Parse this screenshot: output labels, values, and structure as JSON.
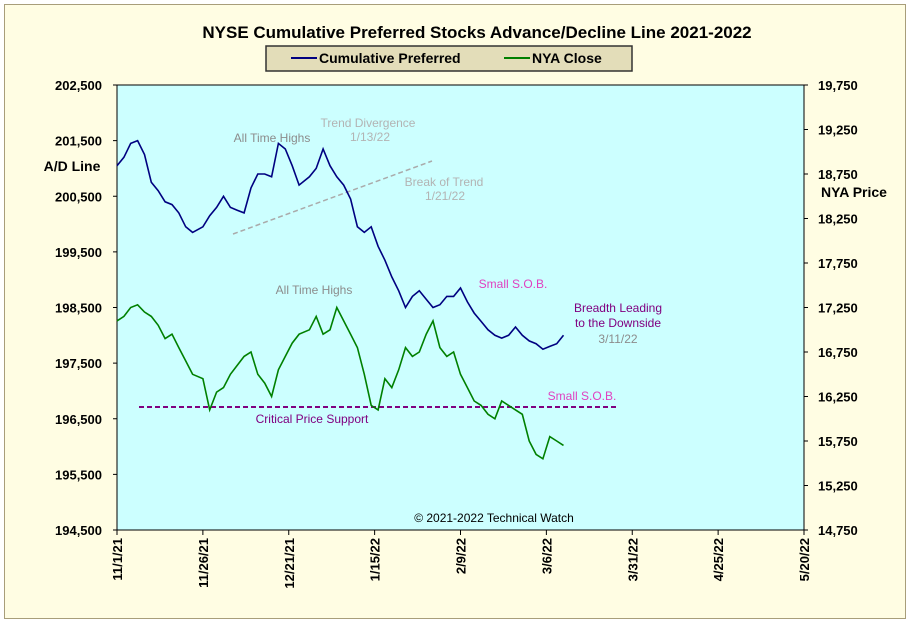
{
  "colors": {
    "background": "#fffde3",
    "plot_area": "#ccffff",
    "preferred": "#000080",
    "nya": "#008000",
    "support_line": "#800080",
    "legend_bg": "#e3ddb9",
    "gray_annotation": "#8c8c8c",
    "light_annotation": "#b3b3b3",
    "magenta_annotation": "#e040c0",
    "purple_annotation": "#800080"
  },
  "chart_data": {
    "type": "line",
    "title": "NYSE Cumulative  Preferred Stocks Advance/Decline  Line 2021-2022",
    "left_axis_label": "A/D Line",
    "right_axis_label": "NYA Price",
    "x_ticks": [
      "11/1/21",
      "11/26/21",
      "12/21/21",
      "1/15/22",
      "2/9/22",
      "3/6/22",
      "3/31/22",
      "4/25/22",
      "5/20/22"
    ],
    "left_ylim": [
      194500,
      202500
    ],
    "left_ticks": [
      "194,500",
      "195,500",
      "196,500",
      "197,500",
      "198,500",
      "199,500",
      "200,500",
      "201,500",
      "202,500"
    ],
    "right_ylim": [
      14750,
      19750
    ],
    "right_ticks": [
      "14,750",
      "15,250",
      "15,750",
      "16,250",
      "16,750",
      "17,250",
      "17,750",
      "18,250",
      "18,750",
      "19,250",
      "19,750"
    ],
    "legend": {
      "position": "top-center",
      "entries": [
        "Cumulative Preferred",
        "NYA Close"
      ]
    },
    "series": [
      {
        "name": "Cumulative Preferred",
        "axis": "left",
        "x": [
          "2021-11-01",
          "2021-11-03",
          "2021-11-05",
          "2021-11-07",
          "2021-11-09",
          "2021-11-11",
          "2021-11-13",
          "2021-11-15",
          "2021-11-17",
          "2021-11-19",
          "2021-11-21",
          "2021-11-23",
          "2021-11-26",
          "2021-11-28",
          "2021-11-30",
          "2021-12-02",
          "2021-12-04",
          "2021-12-06",
          "2021-12-08",
          "2021-12-10",
          "2021-12-12",
          "2021-12-14",
          "2021-12-16",
          "2021-12-18",
          "2021-12-20",
          "2021-12-22",
          "2021-12-24",
          "2021-12-27",
          "2021-12-29",
          "2021-12-31",
          "2022-01-02",
          "2022-01-04",
          "2022-01-06",
          "2022-01-08",
          "2022-01-10",
          "2022-01-12",
          "2022-01-14",
          "2022-01-16",
          "2022-01-18",
          "2022-01-20",
          "2022-01-22",
          "2022-01-24",
          "2022-01-26",
          "2022-01-28",
          "2022-01-30",
          "2022-02-01",
          "2022-02-03",
          "2022-02-05",
          "2022-02-07",
          "2022-02-09",
          "2022-02-11",
          "2022-02-13",
          "2022-02-15",
          "2022-02-17",
          "2022-02-19",
          "2022-02-21",
          "2022-02-23",
          "2022-02-25",
          "2022-02-27",
          "2022-03-01",
          "2022-03-03",
          "2022-03-05",
          "2022-03-07",
          "2022-03-09",
          "2022-03-11"
        ],
        "values": [
          201050,
          201200,
          201450,
          201500,
          201250,
          200750,
          200600,
          200400,
          200350,
          200200,
          199950,
          199850,
          199950,
          200150,
          200300,
          200500,
          200300,
          200250,
          200200,
          200650,
          200900,
          200900,
          200850,
          201450,
          201350,
          201050,
          200700,
          200850,
          201000,
          201350,
          201050,
          200850,
          200700,
          200450,
          199950,
          199850,
          199950,
          199600,
          199350,
          199050,
          198800,
          198500,
          198700,
          198800,
          198650,
          198500,
          198550,
          198700,
          198700,
          198850,
          198600,
          198400,
          198250,
          198100,
          198000,
          197950,
          198000,
          198150,
          198000,
          197900,
          197850,
          197750,
          197800,
          197850,
          198000
        ]
      },
      {
        "name": "NYA Close",
        "axis": "right",
        "x": [
          "2021-11-01",
          "2021-11-03",
          "2021-11-05",
          "2021-11-07",
          "2021-11-09",
          "2021-11-11",
          "2021-11-13",
          "2021-11-15",
          "2021-11-17",
          "2021-11-19",
          "2021-11-21",
          "2021-11-23",
          "2021-11-26",
          "2021-11-28",
          "2021-11-30",
          "2021-12-02",
          "2021-12-04",
          "2021-12-06",
          "2021-12-08",
          "2021-12-10",
          "2021-12-12",
          "2021-12-14",
          "2021-12-16",
          "2021-12-18",
          "2021-12-20",
          "2021-12-22",
          "2021-12-24",
          "2021-12-27",
          "2021-12-29",
          "2021-12-31",
          "2022-01-02",
          "2022-01-04",
          "2022-01-06",
          "2022-01-08",
          "2022-01-10",
          "2022-01-12",
          "2022-01-14",
          "2022-01-16",
          "2022-01-18",
          "2022-01-20",
          "2022-01-22",
          "2022-01-24",
          "2022-01-26",
          "2022-01-28",
          "2022-01-30",
          "2022-02-01",
          "2022-02-03",
          "2022-02-05",
          "2022-02-07",
          "2022-02-09",
          "2022-02-11",
          "2022-02-13",
          "2022-02-15",
          "2022-02-17",
          "2022-02-19",
          "2022-02-21",
          "2022-02-23",
          "2022-02-25",
          "2022-02-27",
          "2022-03-01",
          "2022-03-03",
          "2022-03-05",
          "2022-03-07",
          "2022-03-09",
          "2022-03-11"
        ],
        "values": [
          17100,
          17150,
          17250,
          17280,
          17200,
          17150,
          17050,
          16900,
          16950,
          16800,
          16650,
          16500,
          16450,
          16100,
          16300,
          16350,
          16500,
          16600,
          16700,
          16750,
          16500,
          16400,
          16250,
          16550,
          16700,
          16850,
          16950,
          17000,
          17150,
          16950,
          17000,
          17250,
          17100,
          16950,
          16800,
          16500,
          16150,
          16100,
          16450,
          16350,
          16550,
          16800,
          16700,
          16750,
          16950,
          17100,
          16800,
          16700,
          16750,
          16500,
          16350,
          16200,
          16150,
          16050,
          16000,
          16200,
          16150,
          16100,
          16050,
          15750,
          15600,
          15550,
          15800,
          15750,
          15700
        ]
      }
    ],
    "support_level": 196750
  },
  "annotations": {
    "all_time_highs_top": "All Time Highs",
    "trend_divergence": "Trend  Divergence",
    "trend_divergence_date": "1/13/22",
    "break_of_trend": "Break  of Trend",
    "break_of_trend_date": "1/21/22",
    "small_sob_top": "Small S.O.B.",
    "breadth_leading": "Breadth Leading",
    "to_the_downside": "to the Downside",
    "breadth_date": "3/11/22",
    "all_time_highs_bottom": "All Time Highs",
    "small_sob_bottom": "Small S.O.B.",
    "critical_support": "Critical Price Support",
    "copyright": "© 2021-2022  Technical  Watch"
  }
}
